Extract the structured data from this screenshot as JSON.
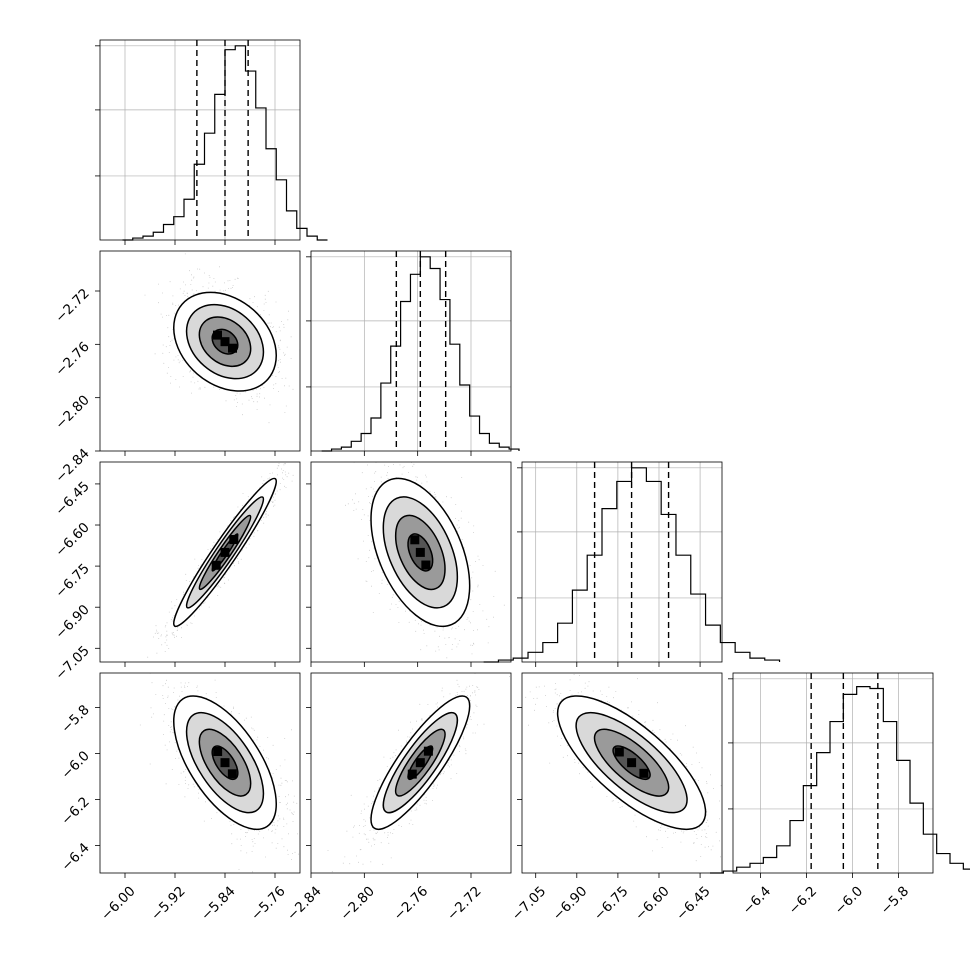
{
  "chart_data": {
    "type": "corner",
    "grid": true,
    "colors": {
      "line": "#000000",
      "grid": "#b0b0b0",
      "points": "#9a9a9a",
      "fill_dark": "#000000",
      "fill_light": "#ffffff"
    },
    "parameters": [
      {
        "range": [
          -6.04,
          -5.72
        ],
        "median": -5.84,
        "quantiles": [
          -5.885,
          -5.803
        ],
        "ticks": [
          -6.0,
          -5.92,
          -5.84,
          -5.76
        ],
        "tick_labels": [
          "−6.00",
          "−5.92",
          "−5.84",
          "−5.76"
        ],
        "hist_ticks": [
          0,
          0.33,
          0.67,
          1.0
        ],
        "hist_values": [
          0.0,
          0.01,
          0.02,
          0.04,
          0.08,
          0.12,
          0.21,
          0.39,
          0.55,
          0.75,
          0.98,
          1.0,
          0.87,
          0.68,
          0.47,
          0.31,
          0.15,
          0.06,
          0.02,
          0.0
        ]
      },
      {
        "range": [
          -2.84,
          -2.69
        ],
        "median": -2.758,
        "quantiles": [
          -2.776,
          -2.739
        ],
        "ticks": [
          -2.84,
          -2.8,
          -2.76,
          -2.72
        ],
        "tick_labels": [
          "−2.84",
          "−2.80",
          "−2.76",
          "−2.72"
        ],
        "hist_ticks": [
          0,
          0.33,
          0.67,
          1.0
        ],
        "hist_values": [
          0.0,
          0.01,
          0.02,
          0.05,
          0.09,
          0.17,
          0.35,
          0.54,
          0.77,
          0.91,
          1.0,
          0.94,
          0.78,
          0.55,
          0.34,
          0.18,
          0.09,
          0.04,
          0.02,
          0.01
        ]
      },
      {
        "range": [
          -7.1,
          -6.37
        ],
        "median": -6.7,
        "quantiles": [
          -6.835,
          -6.565
        ],
        "ticks": [
          -7.05,
          -6.9,
          -6.75,
          -6.6,
          -6.45
        ],
        "tick_labels": [
          "−7.05",
          "−6.90",
          "−6.75",
          "−6.60",
          "−6.45"
        ],
        "hist_ticks": [
          0,
          0.33,
          0.67,
          1.0
        ],
        "hist_values": [
          0.0,
          0.01,
          0.02,
          0.05,
          0.1,
          0.2,
          0.37,
          0.55,
          0.79,
          0.93,
          1.0,
          0.93,
          0.76,
          0.55,
          0.35,
          0.19,
          0.1,
          0.05,
          0.02,
          0.01
        ]
      },
      {
        "range": [
          -6.52,
          -5.65
        ],
        "median": -6.04,
        "quantiles": [
          -6.18,
          -5.89
        ],
        "ticks": [
          -6.4,
          -6.2,
          -6.0,
          -5.8
        ],
        "tick_labels": [
          "−6.4",
          "−6.2",
          "−6.0",
          "−5.8"
        ],
        "hist_ticks": [
          0,
          0.33,
          0.67,
          1.0
        ],
        "hist_values": [
          0.0,
          0.01,
          0.03,
          0.05,
          0.08,
          0.14,
          0.27,
          0.45,
          0.62,
          0.78,
          0.92,
          0.96,
          0.95,
          0.78,
          0.58,
          0.36,
          0.2,
          0.1,
          0.05,
          0.02
        ]
      }
    ],
    "correlations": {
      "1-0": -0.28,
      "2-0": 0.96,
      "2-1": -0.45,
      "3-0": -0.62,
      "3-1": 0.85,
      "3-2": -0.74
    },
    "contour_levels": [
      0.5,
      1.0,
      1.5,
      2.0
    ],
    "x_tick_rotation": -45,
    "y_tick_rotation": -45
  }
}
